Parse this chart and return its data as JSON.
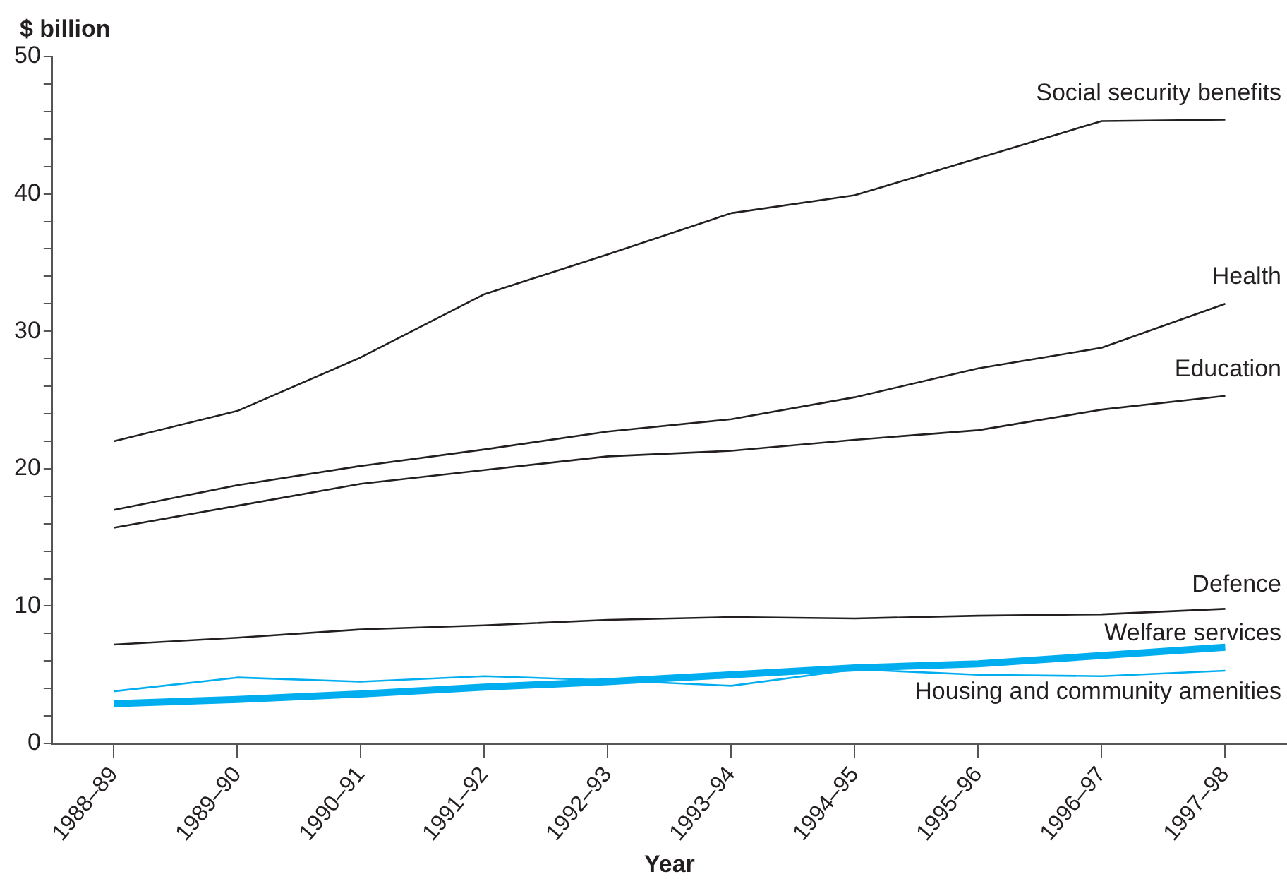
{
  "chart_data": {
    "type": "line",
    "xlabel": "Year",
    "ylabel": "$ billion",
    "categories": [
      "1988–89",
      "1989–90",
      "1990–91",
      "1991–92",
      "1992–93",
      "1993–94",
      "1994–95",
      "1995–96",
      "1996–97",
      "1997–98"
    ],
    "series": [
      {
        "name": "Social security benefits",
        "color": "#231f20",
        "values": [
          22.0,
          24.2,
          28.1,
          32.7,
          35.6,
          38.6,
          39.9,
          42.6,
          45.3,
          45.4
        ]
      },
      {
        "name": "Health",
        "color": "#231f20",
        "values": [
          17.0,
          18.8,
          20.2,
          21.4,
          22.7,
          23.6,
          25.2,
          27.3,
          28.8,
          32.0
        ]
      },
      {
        "name": "Education",
        "color": "#231f20",
        "values": [
          15.7,
          17.3,
          18.9,
          19.9,
          20.9,
          21.3,
          22.1,
          22.8,
          24.3,
          25.3
        ]
      },
      {
        "name": "Defence",
        "color": "#231f20",
        "values": [
          7.2,
          7.7,
          8.3,
          8.6,
          9.0,
          9.2,
          9.1,
          9.3,
          9.4,
          9.8
        ]
      },
      {
        "name": "Welfare services",
        "color": "#00aeef",
        "values": [
          2.9,
          3.2,
          3.6,
          4.1,
          4.5,
          5.0,
          5.5,
          5.8,
          6.4,
          7.0
        ]
      },
      {
        "name": "Housing and community amenities",
        "color": "#00aeef",
        "values": [
          3.8,
          4.8,
          4.5,
          4.9,
          4.6,
          4.2,
          5.4,
          5.0,
          4.9,
          5.3
        ]
      }
    ],
    "ylim": [
      0,
      50
    ],
    "yticks": [
      0,
      {
        "value": 2,
        "label": null
      },
      {
        "value": 4,
        "label": null
      },
      {
        "value": 6,
        "label": null
      },
      {
        "value": 8,
        "label": null
      },
      10,
      {
        "value": 12,
        "label": null
      },
      {
        "value": 14,
        "label": null
      },
      {
        "value": 16,
        "label": null
      },
      {
        "value": 18,
        "label": null
      },
      20,
      {
        "value": 22,
        "label": null
      },
      {
        "value": 24,
        "label": null
      },
      {
        "value": 26,
        "label": null
      },
      {
        "value": 28,
        "label": null
      },
      30,
      {
        "value": 32,
        "label": null
      },
      {
        "value": 34,
        "label": null
      },
      {
        "value": 36,
        "label": null
      },
      {
        "value": 38,
        "label": null
      },
      40,
      {
        "value": 42,
        "label": null
      },
      {
        "value": 44,
        "label": null
      },
      {
        "value": 46,
        "label": null
      },
      {
        "value": 48,
        "label": null
      },
      50
    ],
    "grid": false,
    "legend": false,
    "marker": "none",
    "line_style": "solid"
  }
}
